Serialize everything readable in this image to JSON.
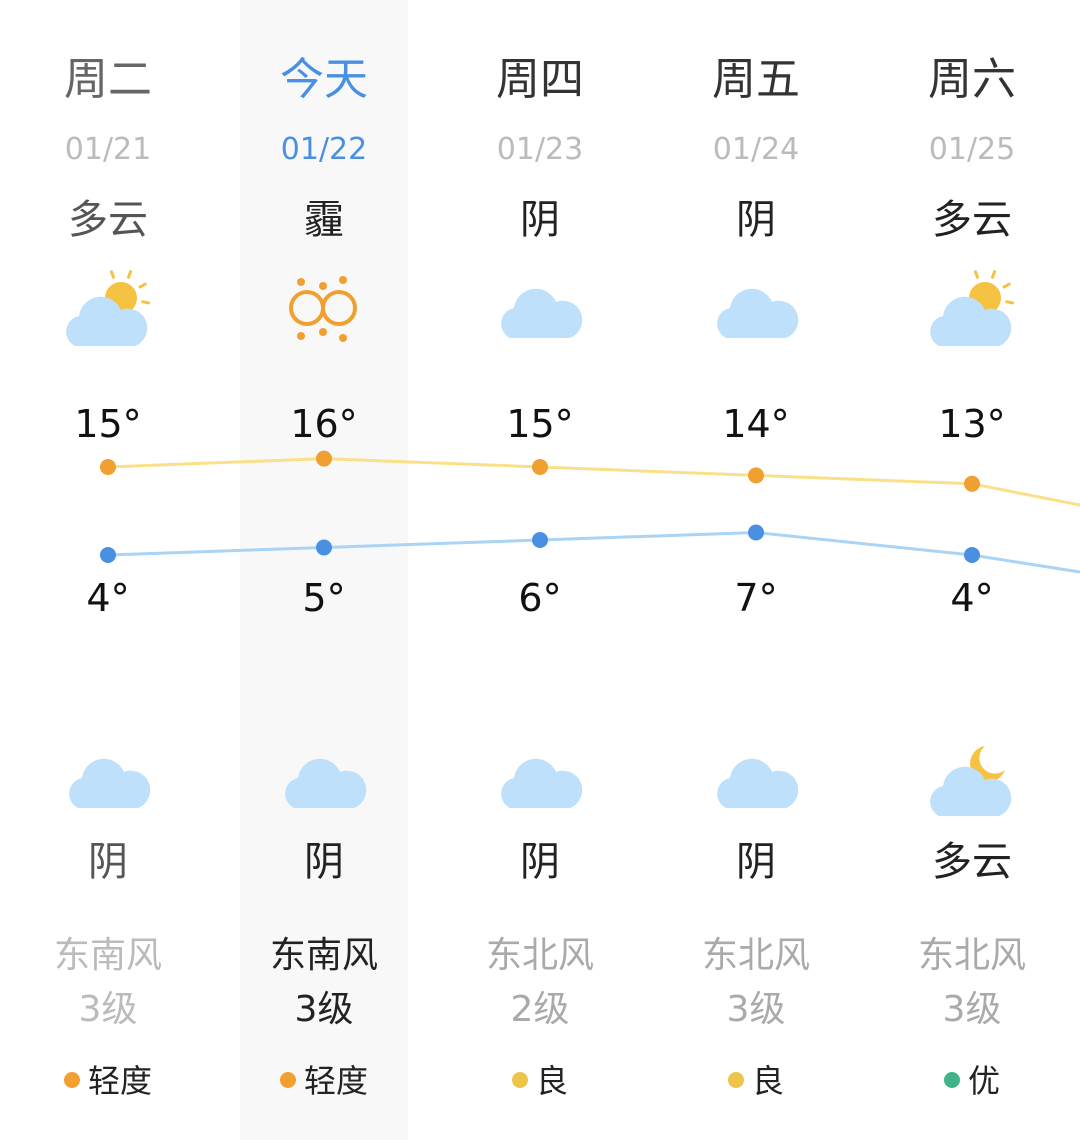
{
  "colors": {
    "accent": "#4a90e2",
    "high_line": "#fbe08a",
    "high_dot": "#f0a030",
    "low_line": "#a9d4f5",
    "low_dot": "#4a90e2",
    "cloud": "#bfe0fa",
    "sun": "#f5c242",
    "haze": "#f0a030"
  },
  "days": [
    {
      "name": "周二",
      "date": "01/21",
      "day_weather": "多云",
      "day_icon": "partly-cloudy-day-icon",
      "high": "15°",
      "low": "4°",
      "night_icon": "cloudy-icon",
      "night_weather": "阴",
      "wind": "东南风",
      "wind_level": "3级",
      "aqi": "轻度",
      "aqi_color": "#f0a030",
      "state": "past"
    },
    {
      "name": "今天",
      "date": "01/22",
      "day_weather": "霾",
      "day_icon": "haze-icon",
      "high": "16°",
      "low": "5°",
      "night_icon": "cloudy-icon",
      "night_weather": "阴",
      "wind": "东南风",
      "wind_level": "3级",
      "aqi": "轻度",
      "aqi_color": "#f0a030",
      "state": "today"
    },
    {
      "name": "周四",
      "date": "01/23",
      "day_weather": "阴",
      "day_icon": "cloudy-icon",
      "high": "15°",
      "low": "6°",
      "night_icon": "cloudy-icon",
      "night_weather": "阴",
      "wind": "东北风",
      "wind_level": "2级",
      "aqi": "良",
      "aqi_color": "#ecc54a",
      "state": "future"
    },
    {
      "name": "周五",
      "date": "01/24",
      "day_weather": "阴",
      "day_icon": "cloudy-icon",
      "high": "14°",
      "low": "7°",
      "night_icon": "cloudy-icon",
      "night_weather": "阴",
      "wind": "东北风",
      "wind_level": "3级",
      "aqi": "良",
      "aqi_color": "#ecc54a",
      "state": "future"
    },
    {
      "name": "周六",
      "date": "01/25",
      "day_weather": "多云",
      "day_icon": "partly-cloudy-day-icon",
      "high": "13°",
      "low": "4°",
      "night_icon": "partly-cloudy-night-icon",
      "night_weather": "多云",
      "wind": "东北风",
      "wind_level": "3级",
      "aqi": "优",
      "aqi_color": "#3fb38a",
      "state": "future"
    }
  ],
  "chart_data": {
    "type": "line",
    "categories": [
      "01/21",
      "01/22",
      "01/23",
      "01/24",
      "01/25"
    ],
    "series": [
      {
        "values": [
          15,
          16,
          15,
          14,
          13
        ]
      },
      {
        "values": [
          4,
          5,
          6,
          7,
          4
        ]
      }
    ]
  }
}
